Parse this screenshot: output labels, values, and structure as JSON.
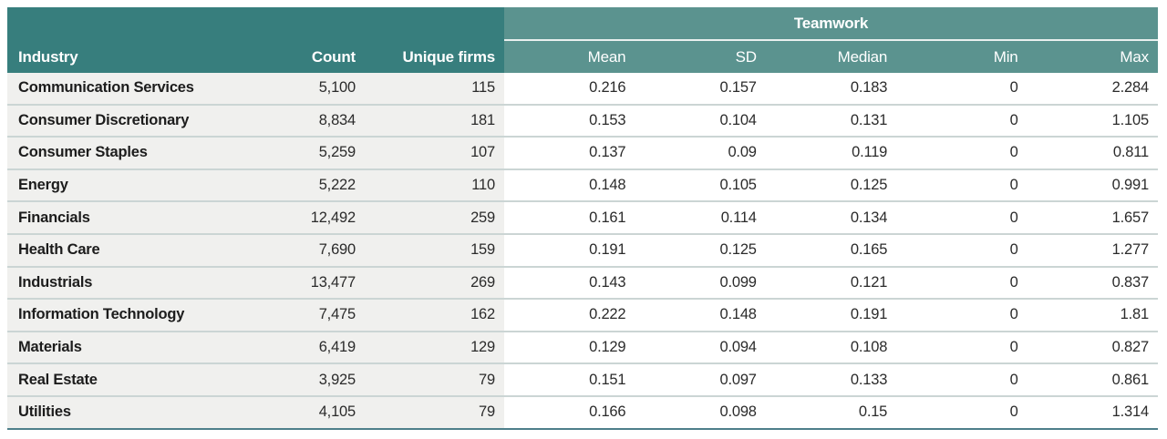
{
  "colors": {
    "header-dark": "#377E7D",
    "header-light": "#5B938F",
    "group-separator": "#E9F0EF",
    "row-bg-left": "#F0F0EE",
    "row-bg-right": "#FFFFFF",
    "row-separator": "#CBD5D4",
    "bottom-border": "#4E7F8A",
    "text-dark": "#1C1C1C",
    "text-num": "#2B2B2B"
  },
  "table": {
    "group_header": "Teamwork",
    "columns": [
      "Industry",
      "Count",
      "Unique firms",
      "Mean",
      "SD",
      "Median",
      "Min",
      "Max"
    ],
    "rows": [
      {
        "industry": "Communication Services",
        "count": "5,100",
        "unique_firms": "115",
        "mean": "0.216",
        "sd": "0.157",
        "median": "0.183",
        "min": "0",
        "max": "2.284"
      },
      {
        "industry": "Consumer Discretionary",
        "count": "8,834",
        "unique_firms": "181",
        "mean": "0.153",
        "sd": "0.104",
        "median": "0.131",
        "min": "0",
        "max": "1.105"
      },
      {
        "industry": "Consumer Staples",
        "count": "5,259",
        "unique_firms": "107",
        "mean": "0.137",
        "sd": "0.09",
        "median": "0.119",
        "min": "0",
        "max": "0.811"
      },
      {
        "industry": "Energy",
        "count": "5,222",
        "unique_firms": "110",
        "mean": "0.148",
        "sd": "0.105",
        "median": "0.125",
        "min": "0",
        "max": "0.991"
      },
      {
        "industry": "Financials",
        "count": "12,492",
        "unique_firms": "259",
        "mean": "0.161",
        "sd": "0.114",
        "median": "0.134",
        "min": "0",
        "max": "1.657"
      },
      {
        "industry": "Health Care",
        "count": "7,690",
        "unique_firms": "159",
        "mean": "0.191",
        "sd": "0.125",
        "median": "0.165",
        "min": "0",
        "max": "1.277"
      },
      {
        "industry": "Industrials",
        "count": "13,477",
        "unique_firms": "269",
        "mean": "0.143",
        "sd": "0.099",
        "median": "0.121",
        "min": "0",
        "max": "0.837"
      },
      {
        "industry": "Information Technology",
        "count": "7,475",
        "unique_firms": "162",
        "mean": "0.222",
        "sd": "0.148",
        "median": "0.191",
        "min": "0",
        "max": "1.81"
      },
      {
        "industry": "Materials",
        "count": "6,419",
        "unique_firms": "129",
        "mean": "0.129",
        "sd": "0.094",
        "median": "0.108",
        "min": "0",
        "max": "0.827"
      },
      {
        "industry": "Real Estate",
        "count": "3,925",
        "unique_firms": "79",
        "mean": "0.151",
        "sd": "0.097",
        "median": "0.133",
        "min": "0",
        "max": "0.861"
      },
      {
        "industry": "Utilities",
        "count": "4,105",
        "unique_firms": "79",
        "mean": "0.166",
        "sd": "0.098",
        "median": "0.15",
        "min": "0",
        "max": "1.314"
      }
    ]
  }
}
